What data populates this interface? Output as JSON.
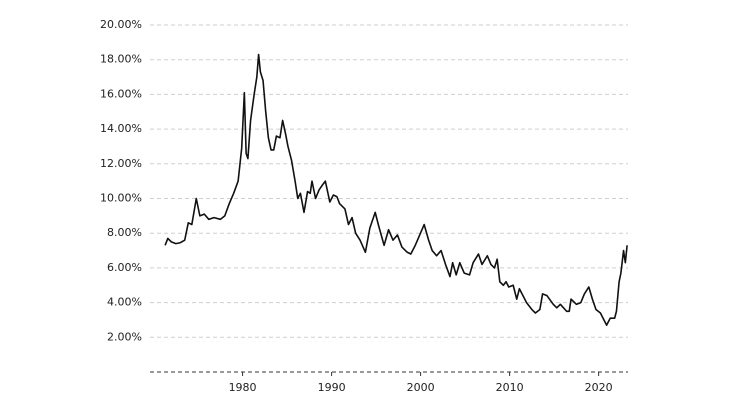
{
  "chart_data": {
    "type": "line",
    "x": [
      1971.3,
      1971.6,
      1972.0,
      1972.5,
      1973.0,
      1973.5,
      1973.9,
      1974.3,
      1974.8,
      1975.2,
      1975.7,
      1976.2,
      1976.8,
      1977.5,
      1978.0,
      1978.5,
      1979.0,
      1979.5,
      1979.9,
      1980.2,
      1980.4,
      1980.6,
      1980.9,
      1981.3,
      1981.6,
      1981.8,
      1982.0,
      1982.3,
      1982.6,
      1982.9,
      1983.2,
      1983.5,
      1983.8,
      1984.2,
      1984.5,
      1984.8,
      1985.1,
      1985.5,
      1985.9,
      1986.2,
      1986.5,
      1986.9,
      1987.3,
      1987.6,
      1987.8,
      1988.2,
      1988.6,
      1989.0,
      1989.3,
      1989.8,
      1990.2,
      1990.6,
      1990.9,
      1991.5,
      1991.9,
      1992.3,
      1992.7,
      1993.2,
      1993.8,
      1994.3,
      1994.9,
      1995.3,
      1995.9,
      1996.4,
      1996.9,
      1997.4,
      1997.9,
      1998.5,
      1998.9,
      1999.4,
      1999.9,
      2000.4,
      2000.9,
      2001.3,
      2001.8,
      2002.3,
      2002.8,
      2003.3,
      2003.6,
      2004.0,
      2004.4,
      2004.9,
      2005.5,
      2005.9,
      2006.5,
      2006.9,
      2007.5,
      2007.9,
      2008.3,
      2008.6,
      2008.9,
      2009.3,
      2009.6,
      2009.9,
      2010.4,
      2010.8,
      2011.1,
      2011.6,
      2011.9,
      2012.5,
      2012.9,
      2013.4,
      2013.7,
      2014.2,
      2014.9,
      2015.3,
      2015.7,
      2016.4,
      2016.7,
      2016.9,
      2017.5,
      2018.0,
      2018.4,
      2018.9,
      2019.3,
      2019.7,
      2020.2,
      2020.6,
      2020.9,
      2021.3,
      2021.8,
      2022.0,
      2022.3,
      2022.5,
      2022.8,
      2023.0,
      2023.2
    ],
    "values": [
      7.3,
      7.7,
      7.5,
      7.4,
      7.45,
      7.6,
      8.6,
      8.5,
      10.0,
      9.0,
      9.1,
      8.8,
      8.9,
      8.8,
      9.0,
      9.7,
      10.3,
      11.0,
      12.9,
      16.1,
      12.6,
      12.3,
      14.5,
      16.0,
      17.0,
      18.3,
      17.3,
      16.8,
      15.0,
      13.5,
      12.8,
      12.8,
      13.6,
      13.5,
      14.5,
      13.8,
      13.0,
      12.2,
      11.0,
      10.0,
      10.3,
      9.2,
      10.4,
      10.3,
      11.0,
      10.0,
      10.5,
      10.8,
      11.0,
      9.8,
      10.2,
      10.1,
      9.7,
      9.4,
      8.5,
      8.9,
      8.0,
      7.6,
      6.9,
      8.3,
      9.2,
      8.4,
      7.3,
      8.2,
      7.6,
      7.9,
      7.2,
      6.9,
      6.8,
      7.3,
      7.9,
      8.5,
      7.6,
      7.0,
      6.7,
      7.0,
      6.2,
      5.5,
      6.3,
      5.6,
      6.3,
      5.7,
      5.6,
      6.3,
      6.8,
      6.2,
      6.7,
      6.2,
      6.0,
      6.5,
      5.2,
      5.0,
      5.2,
      4.9,
      5.0,
      4.2,
      4.8,
      4.3,
      4.0,
      3.6,
      3.4,
      3.6,
      4.5,
      4.4,
      3.9,
      3.7,
      3.9,
      3.5,
      3.5,
      4.2,
      3.9,
      4.0,
      4.5,
      4.9,
      4.2,
      3.6,
      3.4,
      3.0,
      2.7,
      3.1,
      3.1,
      3.5,
      5.2,
      5.7,
      7.0,
      6.3,
      7.3
    ],
    "color": "#111111",
    "xlim": [
      1969.6,
      2023.3
    ],
    "xticks": [
      1980,
      1990,
      2000,
      2010,
      2020
    ],
    "ylim": [
      0,
      20
    ],
    "yticks": [
      {
        "value": 2,
        "label": "2.00%"
      },
      {
        "value": 4,
        "label": "4.00%"
      },
      {
        "value": 6,
        "label": "6.00%"
      },
      {
        "value": 8,
        "label": "8.00%"
      },
      {
        "value": 10,
        "label": "10.00%"
      },
      {
        "value": 12,
        "label": "12.00%"
      },
      {
        "value": 14,
        "label": "14.00%"
      },
      {
        "value": 16,
        "label": "16.00%"
      },
      {
        "value": 18,
        "label": "18.00%"
      },
      {
        "value": 20,
        "label": "20.00%"
      }
    ],
    "grid": true
  }
}
